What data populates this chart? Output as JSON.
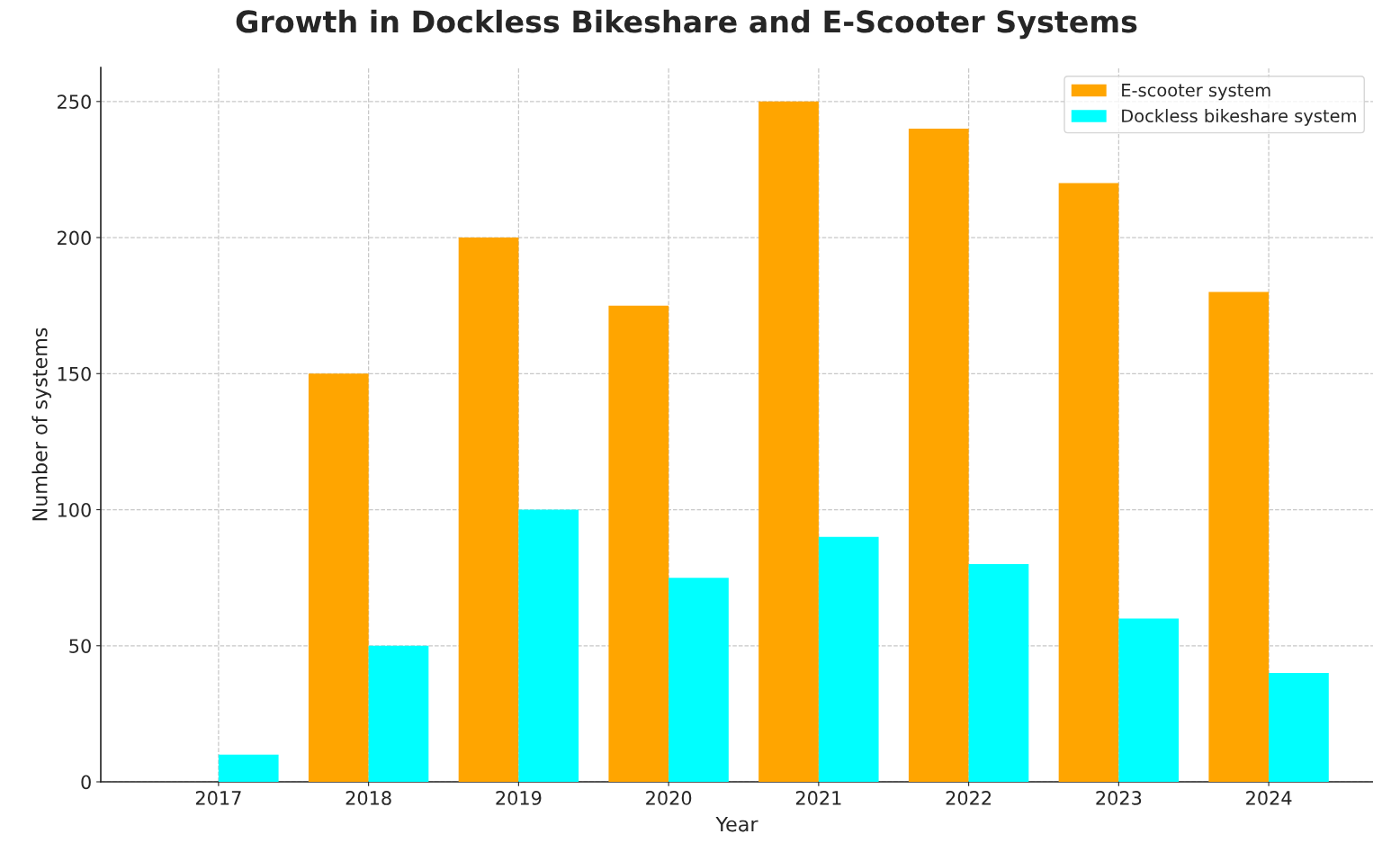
{
  "chart_data": {
    "type": "bar",
    "title": "Growth in Dockless Bikeshare and E-Scooter Systems",
    "xlabel": "Year",
    "ylabel": "Number of systems",
    "categories": [
      "2017",
      "2018",
      "2019",
      "2020",
      "2021",
      "2022",
      "2023",
      "2024"
    ],
    "series": [
      {
        "name": "E-scooter system",
        "color": "#ffa500",
        "values": [
          null,
          150,
          200,
          175,
          250,
          240,
          220,
          180
        ]
      },
      {
        "name": "Dockless bikeshare system",
        "color": "#00ffff",
        "values": [
          10,
          50,
          100,
          75,
          90,
          80,
          60,
          40
        ]
      }
    ],
    "ylim": [
      0,
      262.5
    ],
    "yticks": [
      0,
      50,
      100,
      150,
      200,
      250
    ],
    "grid": true,
    "legend": "top right"
  }
}
